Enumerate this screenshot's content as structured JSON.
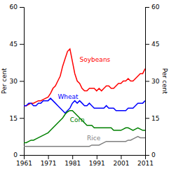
{
  "chart_data": {
    "type": "line",
    "y_label": "Per cent",
    "y2_label": "Per cent",
    "x": [
      1961,
      1962,
      1963,
      1964,
      1965,
      1966,
      1967,
      1968,
      1969,
      1970,
      1971,
      1972,
      1973,
      1974,
      1975,
      1976,
      1977,
      1978,
      1979,
      1980,
      1981,
      1982,
      1983,
      1984,
      1985,
      1986,
      1987,
      1988,
      1989,
      1990,
      1991,
      1992,
      1993,
      1994,
      1995,
      1996,
      1997,
      1998,
      1999,
      2000,
      2001,
      2002,
      2003,
      2004,
      2005,
      2006,
      2007,
      2008,
      2009,
      2010,
      2011
    ],
    "series": [
      {
        "color": "#ff0000",
        "values": [
          20,
          20,
          20.5,
          21,
          21,
          21.5,
          22,
          22,
          22.5,
          23,
          23.5,
          25,
          27,
          28,
          30,
          32,
          36,
          39,
          42,
          43,
          38,
          33,
          30,
          29,
          27,
          26,
          26,
          27,
          27,
          27,
          26,
          27,
          26,
          27,
          28,
          28,
          27,
          27,
          28,
          29,
          29,
          30,
          30,
          31,
          30,
          30,
          31,
          32,
          33,
          33,
          35
        ]
      },
      {
        "color": "#0000ff",
        "values": [
          20,
          20,
          21,
          21,
          20,
          20,
          21,
          21,
          22,
          22,
          22,
          23,
          22,
          21,
          20,
          19,
          18,
          17,
          18,
          19,
          21,
          22,
          21,
          22,
          21,
          20,
          20,
          21,
          20,
          19,
          19,
          19,
          19,
          19,
          20,
          19,
          19,
          19,
          18,
          18,
          18,
          18,
          18,
          19,
          19,
          19,
          20,
          21,
          21,
          21,
          22
        ]
      },
      {
        "color": "#008000",
        "values": [
          5,
          5,
          5.5,
          6,
          6,
          6.5,
          7,
          7.5,
          8,
          8.5,
          9,
          10,
          11,
          12,
          13,
          14,
          15,
          16.5,
          17.5,
          18,
          18,
          17,
          16,
          15,
          14,
          13,
          12,
          12,
          12,
          11,
          11,
          11,
          11,
          11,
          11,
          11,
          11,
          10,
          10,
          10,
          10,
          10.5,
          11,
          11,
          10.5,
          10,
          10.5,
          11,
          10.5,
          10,
          10
        ]
      },
      {
        "color": "#808080",
        "values": [
          3.5,
          3.5,
          3.5,
          3.5,
          3.5,
          3.5,
          3.5,
          3.5,
          3.5,
          3.5,
          3.5,
          3.5,
          3.5,
          3.5,
          3.5,
          3.5,
          3.5,
          3.5,
          3.5,
          3.5,
          3.5,
          3.5,
          3.5,
          3.5,
          3.5,
          3.5,
          3.5,
          3.5,
          4,
          4,
          4,
          4,
          4.5,
          5,
          5.5,
          5.5,
          5.5,
          5.5,
          5.5,
          5.5,
          5.5,
          5.5,
          5.5,
          6,
          6,
          6.5,
          7,
          7.5,
          7,
          7,
          7
        ]
      }
    ],
    "annotations": [
      {
        "text": "Soybeans",
        "x": 1984,
        "y": 37.5,
        "color": "#ff0000"
      },
      {
        "text": "Wheat",
        "x": 1975,
        "y": 22.5,
        "color": "#0000ff"
      },
      {
        "text": "Corn",
        "x": 1980,
        "y": 13.0,
        "color": "#008000"
      },
      {
        "text": "Rice",
        "x": 1987,
        "y": 5.8,
        "color": "#808080"
      }
    ],
    "xlim": [
      1961,
      2011
    ],
    "xticks": [
      1961,
      1971,
      1981,
      1991,
      2001,
      2011
    ],
    "ylim": [
      0,
      60
    ],
    "yticks": [
      0,
      15,
      30,
      45,
      60
    ],
    "y2lim": [
      0,
      60
    ],
    "y2ticks": [
      0,
      15,
      30,
      45,
      60
    ],
    "grid": false
  }
}
